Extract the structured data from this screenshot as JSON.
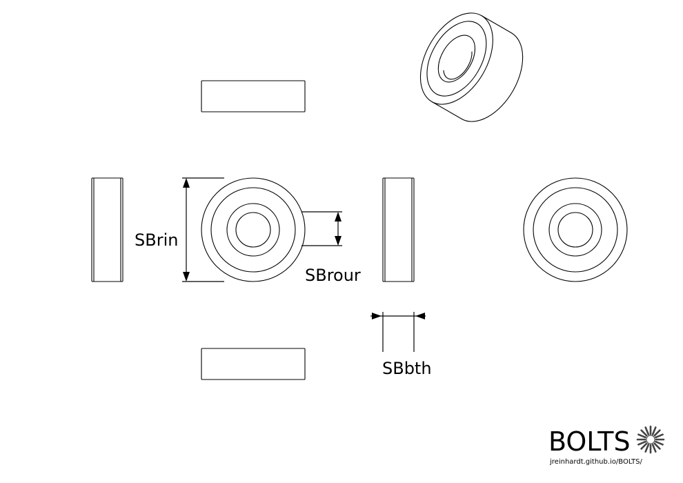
{
  "dimensions": {
    "inner_diameter_label": "SBrin",
    "ring_width_label": "SBrour",
    "thickness_label": "SBbth"
  },
  "branding": {
    "logo_text": "BOLTS",
    "url": "jreinhardt.github.io/BOLTS/"
  }
}
